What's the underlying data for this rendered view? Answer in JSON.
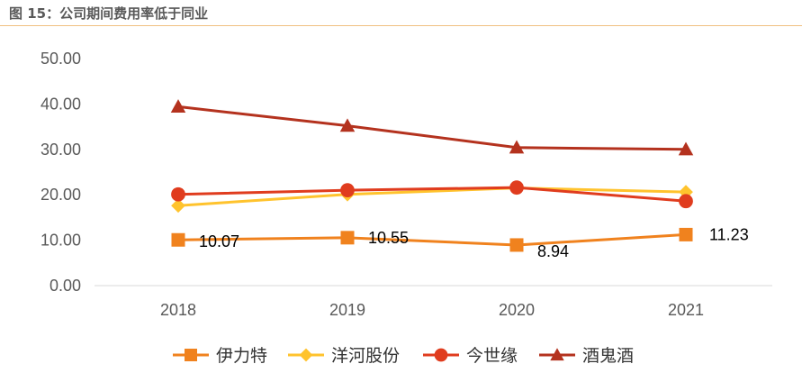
{
  "figure": {
    "title": "图 15：公司期间费用率低于同业"
  },
  "chart_data": {
    "type": "line",
    "categories": [
      "2018",
      "2019",
      "2020",
      "2021"
    ],
    "ylim": [
      0,
      50
    ],
    "yticks": [
      "0.00",
      "10.00",
      "20.00",
      "30.00",
      "40.00",
      "50.00"
    ],
    "grid": false,
    "legend": "bottom",
    "series": [
      {
        "name": "伊力特",
        "values": [
          10.07,
          10.55,
          8.94,
          11.23
        ],
        "labels": [
          "10.07",
          "10.55",
          "8.94",
          "11.23"
        ],
        "color": "#f0821e",
        "marker": "square"
      },
      {
        "name": "洋河股份",
        "values": [
          17.6,
          20.1,
          21.5,
          20.6
        ],
        "color": "#ffc32d",
        "marker": "diamond"
      },
      {
        "name": "今世缘",
        "values": [
          20.1,
          21.0,
          21.6,
          18.6
        ],
        "color": "#e03c1e",
        "marker": "circle"
      },
      {
        "name": "酒鬼酒",
        "values": [
          39.4,
          35.2,
          30.4,
          30.0
        ],
        "color": "#b4321e",
        "marker": "triangle"
      }
    ]
  }
}
